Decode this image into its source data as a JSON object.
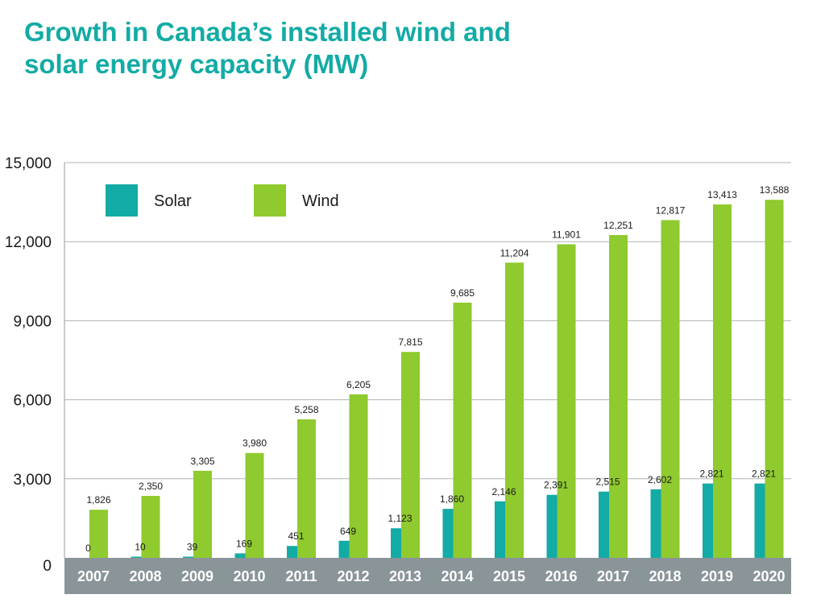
{
  "title_lines": [
    "Growth in Canada’s installed wind and",
    "solar energy capacity (MW)"
  ],
  "chart_data": {
    "type": "bar",
    "title": "Growth in Canada’s installed wind and solar energy capacity (MW)",
    "categories": [
      "2007",
      "2008",
      "2009",
      "2010",
      "2011",
      "2012",
      "2013",
      "2014",
      "2015",
      "2016",
      "2017",
      "2018",
      "2019",
      "2020"
    ],
    "series": [
      {
        "name": "Solar",
        "color": "#13aba5",
        "values": [
          0,
          10,
          39,
          169,
          451,
          649,
          1123,
          1860,
          2146,
          2391,
          2515,
          2602,
          2821,
          2821
        ],
        "labels": [
          "0",
          "10",
          "39",
          "169",
          "451",
          "649",
          "1,123",
          "1,860",
          "2,146",
          "2,391",
          "2,515",
          "2,602",
          "2,821",
          "2,821"
        ]
      },
      {
        "name": "Wind",
        "color": "#8fca2e",
        "values": [
          1826,
          2350,
          3305,
          3980,
          5258,
          6205,
          7815,
          9685,
          11204,
          11901,
          12251,
          12817,
          13413,
          13588
        ],
        "labels": [
          "1,826",
          "2,350",
          "3,305",
          "3,980",
          "5,258",
          "6,205",
          "7,815",
          "9,685",
          "11,204",
          "11,901",
          "12,251",
          "12,817",
          "13,413",
          "13,588"
        ]
      }
    ],
    "yticks": [
      0,
      3000,
      6000,
      9000,
      12000,
      15000
    ],
    "ytick_labels": [
      "0",
      "3,000",
      "6,000",
      "9,000",
      "12,000",
      "15,000"
    ],
    "ylim": [
      0,
      15000
    ],
    "grid": true,
    "legend": "top-left",
    "axis_band_color": "#8a9599",
    "gridline_color": "#b3b3b3"
  }
}
